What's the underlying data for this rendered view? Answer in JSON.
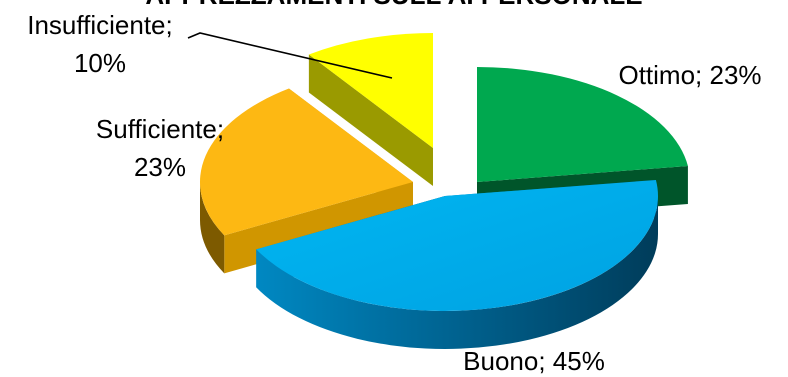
{
  "chart_data": {
    "type": "pie",
    "title": "APPREZZAMENTI SULL'AI PERSONALE",
    "slices": [
      {
        "label": "Ottimo",
        "value": 23,
        "color": "#00A84F"
      },
      {
        "label": "Buono",
        "value": 45,
        "color": "#00AEEF"
      },
      {
        "label": "Sufficiente",
        "value": 23,
        "color": "#FDB813"
      },
      {
        "label": "Insufficiente",
        "value": 10,
        "color": "#FFFF00"
      }
    ],
    "data_labels": [
      {
        "lines": [
          "Ottimo; 23%"
        ]
      },
      {
        "lines": [
          "Buono; 45%"
        ]
      },
      {
        "lines": [
          "Sufficiente;",
          "23%"
        ]
      },
      {
        "lines": [
          "Insufficiente;",
          "10%"
        ]
      }
    ],
    "style": "3d-exploded"
  }
}
